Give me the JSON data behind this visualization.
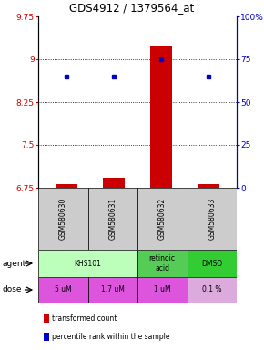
{
  "title": "GDS4912 / 1379564_at",
  "samples": [
    "GSM580630",
    "GSM580631",
    "GSM580632",
    "GSM580633"
  ],
  "bar_values": [
    6.82,
    6.92,
    9.22,
    6.82
  ],
  "bar_bottom": 6.75,
  "percentile_values": [
    65,
    65,
    75,
    65
  ],
  "ylim_left": [
    6.75,
    9.75
  ],
  "ylim_right": [
    0,
    100
  ],
  "yticks_left": [
    6.75,
    7.5,
    8.25,
    9.0,
    9.75
  ],
  "ytick_labels_left": [
    "6.75",
    "7.5",
    "8.25",
    "9",
    "9.75"
  ],
  "yticks_right": [
    0,
    25,
    50,
    75,
    100
  ],
  "ytick_labels_right": [
    "0",
    "25",
    "50",
    "75",
    "100%"
  ],
  "grid_yticks": [
    7.5,
    8.25,
    9.0
  ],
  "bar_color": "#cc0000",
  "dot_color": "#0000cc",
  "agent_defs": [
    [
      0,
      1,
      "KHS101",
      "#bbffbb"
    ],
    [
      2,
      2,
      "retinoic\nacid",
      "#55cc55"
    ],
    [
      3,
      3,
      "DMSO",
      "#33cc33"
    ]
  ],
  "dose_defs": [
    [
      0,
      0,
      "5 uM",
      "#dd55dd"
    ],
    [
      1,
      1,
      "1.7 uM",
      "#dd55dd"
    ],
    [
      2,
      2,
      "1 uM",
      "#dd55dd"
    ],
    [
      3,
      3,
      "0.1 %",
      "#ddaadd"
    ]
  ],
  "sample_bg_color": "#cccccc",
  "left_axis_color": "#cc0000",
  "right_axis_color": "#0000cc",
  "white": "#ffffff"
}
